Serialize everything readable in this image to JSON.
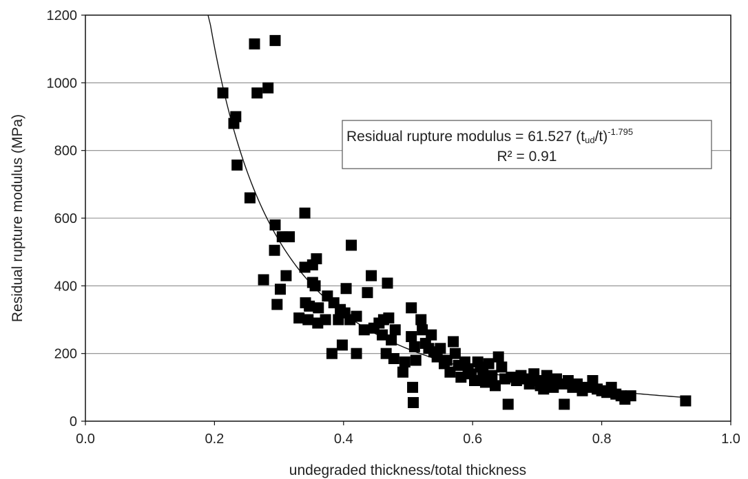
{
  "chart_data": {
    "type": "scatter",
    "xlabel": "undegraded thickness/total thickness",
    "ylabel": "Residual rupture modulus (MPa)",
    "xlim": [
      0.0,
      1.0
    ],
    "ylim": [
      0,
      1200
    ],
    "x_ticks": [
      "0.0",
      "0.2",
      "0.4",
      "0.6",
      "0.8",
      "1.0"
    ],
    "y_ticks": [
      "0",
      "200",
      "400",
      "600",
      "800",
      "1000",
      "1200"
    ],
    "grid": "horizontal",
    "legend": "none",
    "marker_color": "#000000",
    "fit": {
      "type": "power",
      "coefficient": 61.527,
      "exponent": -1.795,
      "x_range": [
        0.19,
        0.93
      ]
    },
    "annotation": {
      "line1_text": "Residual rupture modulus = 61.527 (t",
      "line1_sub": "ud",
      "line1_mid": "/t)",
      "line1_sup": "-1.795",
      "line2": "R² = 0.91"
    },
    "points": [
      [
        0.213,
        970
      ],
      [
        0.23,
        880
      ],
      [
        0.233,
        900
      ],
      [
        0.235,
        757
      ],
      [
        0.255,
        660
      ],
      [
        0.262,
        1115
      ],
      [
        0.266,
        970
      ],
      [
        0.283,
        985
      ],
      [
        0.294,
        1125
      ],
      [
        0.294,
        580
      ],
      [
        0.293,
        505
      ],
      [
        0.297,
        345
      ],
      [
        0.305,
        545
      ],
      [
        0.316,
        545
      ],
      [
        0.276,
        418
      ],
      [
        0.302,
        390
      ],
      [
        0.311,
        430
      ],
      [
        0.34,
        615
      ],
      [
        0.34,
        455
      ],
      [
        0.352,
        462
      ],
      [
        0.358,
        480
      ],
      [
        0.352,
        410
      ],
      [
        0.356,
        400
      ],
      [
        0.341,
        350
      ],
      [
        0.347,
        340
      ],
      [
        0.361,
        335
      ],
      [
        0.331,
        305
      ],
      [
        0.345,
        300
      ],
      [
        0.36,
        290
      ],
      [
        0.372,
        300
      ],
      [
        0.375,
        370
      ],
      [
        0.385,
        350
      ],
      [
        0.395,
        330
      ],
      [
        0.402,
        320
      ],
      [
        0.404,
        392
      ],
      [
        0.412,
        520
      ],
      [
        0.41,
        300
      ],
      [
        0.42,
        310
      ],
      [
        0.392,
        300
      ],
      [
        0.382,
        200
      ],
      [
        0.398,
        225
      ],
      [
        0.42,
        200
      ],
      [
        0.432,
        270
      ],
      [
        0.437,
        380
      ],
      [
        0.443,
        430
      ],
      [
        0.447,
        275
      ],
      [
        0.455,
        290
      ],
      [
        0.46,
        255
      ],
      [
        0.462,
        300
      ],
      [
        0.468,
        408
      ],
      [
        0.47,
        305
      ],
      [
        0.474,
        240
      ],
      [
        0.48,
        270
      ],
      [
        0.466,
        200
      ],
      [
        0.478,
        185
      ],
      [
        0.492,
        145
      ],
      [
        0.495,
        175
      ],
      [
        0.505,
        335
      ],
      [
        0.505,
        250
      ],
      [
        0.51,
        220
      ],
      [
        0.512,
        180
      ],
      [
        0.507,
        100
      ],
      [
        0.508,
        55
      ],
      [
        0.52,
        300
      ],
      [
        0.522,
        270
      ],
      [
        0.527,
        230
      ],
      [
        0.532,
        215
      ],
      [
        0.536,
        255
      ],
      [
        0.54,
        205
      ],
      [
        0.545,
        190
      ],
      [
        0.55,
        215
      ],
      [
        0.556,
        170
      ],
      [
        0.56,
        180
      ],
      [
        0.565,
        145
      ],
      [
        0.57,
        235
      ],
      [
        0.573,
        200
      ],
      [
        0.578,
        165
      ],
      [
        0.582,
        130
      ],
      [
        0.588,
        175
      ],
      [
        0.593,
        155
      ],
      [
        0.598,
        140
      ],
      [
        0.603,
        120
      ],
      [
        0.608,
        175
      ],
      [
        0.612,
        160
      ],
      [
        0.616,
        145
      ],
      [
        0.62,
        115
      ],
      [
        0.625,
        170
      ],
      [
        0.63,
        135
      ],
      [
        0.635,
        105
      ],
      [
        0.64,
        190
      ],
      [
        0.645,
        160
      ],
      [
        0.65,
        125
      ],
      [
        0.655,
        50
      ],
      [
        0.66,
        130
      ],
      [
        0.668,
        120
      ],
      [
        0.675,
        135
      ],
      [
        0.682,
        125
      ],
      [
        0.688,
        110
      ],
      [
        0.695,
        140
      ],
      [
        0.7,
        120
      ],
      [
        0.705,
        105
      ],
      [
        0.71,
        95
      ],
      [
        0.715,
        135
      ],
      [
        0.72,
        115
      ],
      [
        0.725,
        100
      ],
      [
        0.73,
        125
      ],
      [
        0.738,
        110
      ],
      [
        0.742,
        50
      ],
      [
        0.748,
        120
      ],
      [
        0.755,
        100
      ],
      [
        0.762,
        110
      ],
      [
        0.77,
        90
      ],
      [
        0.778,
        100
      ],
      [
        0.786,
        120
      ],
      [
        0.793,
        95
      ],
      [
        0.8,
        90
      ],
      [
        0.808,
        85
      ],
      [
        0.815,
        100
      ],
      [
        0.822,
        80
      ],
      [
        0.83,
        75
      ],
      [
        0.836,
        65
      ],
      [
        0.845,
        75
      ],
      [
        0.93,
        60
      ]
    ]
  }
}
